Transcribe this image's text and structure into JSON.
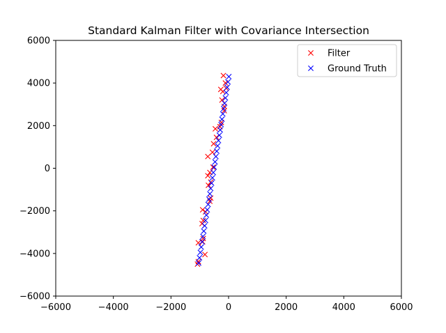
{
  "chart_data": {
    "type": "scatter",
    "title": "Standard Kalman Filter with Covariance Intersection",
    "xlabel": "",
    "ylabel": "",
    "xlim": [
      -6000,
      6000
    ],
    "ylim": [
      -6000,
      6000
    ],
    "xticks": [
      -6000,
      -4000,
      -2000,
      0,
      2000,
      4000,
      6000
    ],
    "yticks": [
      -6000,
      -4000,
      -2000,
      0,
      2000,
      4000,
      6000
    ],
    "xtick_labels": [
      "−6000",
      "−4000",
      "−2000",
      "0",
      "2000",
      "4000",
      "6000"
    ],
    "ytick_labels": [
      "−6000",
      "−4000",
      "−2000",
      "0",
      "2000",
      "4000",
      "6000"
    ],
    "grid": false,
    "legend_position": "top-right",
    "series": [
      {
        "name": "Filter",
        "color": "#ff0000",
        "marker": "x",
        "points": [
          [
            -1080,
            -4500
          ],
          [
            -1050,
            -4380
          ],
          [
            -1050,
            -3500
          ],
          [
            -820,
            -4050
          ],
          [
            -900,
            -3450
          ],
          [
            -880,
            -3300
          ],
          [
            -920,
            -2600
          ],
          [
            -880,
            -2450
          ],
          [
            -900,
            -1950
          ],
          [
            -800,
            -2050
          ],
          [
            -650,
            -1550
          ],
          [
            -620,
            -1400
          ],
          [
            -700,
            -800
          ],
          [
            -620,
            -650
          ],
          [
            -720,
            -350
          ],
          [
            -650,
            -200
          ],
          [
            -540,
            50
          ],
          [
            -720,
            550
          ],
          [
            -560,
            750
          ],
          [
            -520,
            1150
          ],
          [
            -420,
            1450
          ],
          [
            -460,
            1850
          ],
          [
            -300,
            1950
          ],
          [
            -250,
            2150
          ],
          [
            -150,
            2700
          ],
          [
            -150,
            2900
          ],
          [
            -230,
            3200
          ],
          [
            -200,
            3600
          ],
          [
            -270,
            3700
          ],
          [
            -80,
            3750
          ],
          [
            -110,
            4000
          ],
          [
            -180,
            4350
          ]
        ]
      },
      {
        "name": "Ground Truth",
        "color": "#0000ff",
        "marker": "x",
        "points": [
          [
            -1040,
            -4450
          ],
          [
            -1010,
            -4200
          ],
          [
            -980,
            -3950
          ],
          [
            -950,
            -3700
          ],
          [
            -920,
            -3450
          ],
          [
            -890,
            -3200
          ],
          [
            -860,
            -2950
          ],
          [
            -830,
            -2700
          ],
          [
            -800,
            -2450
          ],
          [
            -770,
            -2200
          ],
          [
            -740,
            -1950
          ],
          [
            -710,
            -1700
          ],
          [
            -680,
            -1450
          ],
          [
            -650,
            -1200
          ],
          [
            -620,
            -950
          ],
          [
            -590,
            -700
          ],
          [
            -560,
            -450
          ],
          [
            -530,
            -200
          ],
          [
            -500,
            50
          ],
          [
            -470,
            300
          ],
          [
            -440,
            550
          ],
          [
            -410,
            800
          ],
          [
            -380,
            1050
          ],
          [
            -350,
            1300
          ],
          [
            -320,
            1550
          ],
          [
            -290,
            1800
          ],
          [
            -260,
            2050
          ],
          [
            -230,
            2300
          ],
          [
            -200,
            2550
          ],
          [
            -170,
            2800
          ],
          [
            -140,
            3050
          ],
          [
            -110,
            3300
          ],
          [
            -80,
            3550
          ],
          [
            -50,
            3800
          ],
          [
            -20,
            4050
          ],
          [
            10,
            4300
          ]
        ]
      }
    ]
  }
}
